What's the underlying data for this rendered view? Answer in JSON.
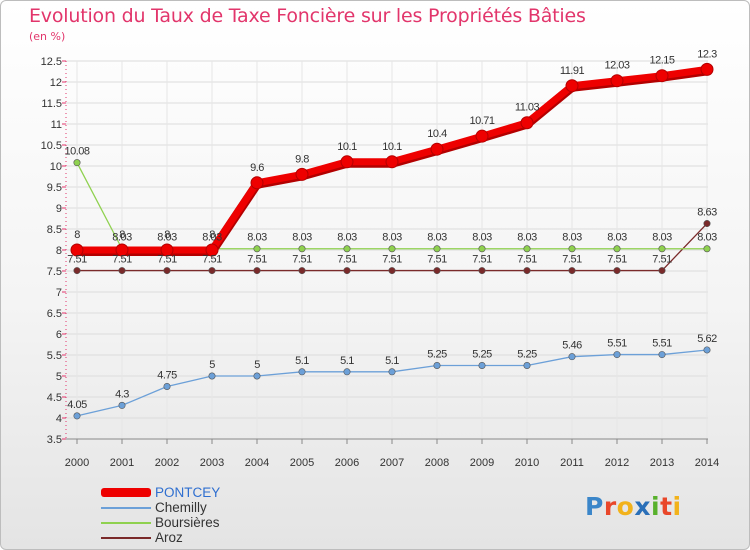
{
  "title": "Evolution du Taux de Taxe Foncière sur les Propriétés Bâties",
  "unit_label": "(en %)",
  "logo": {
    "text": "Proxiti",
    "letter_colors": [
      "#3b86c9",
      "#e9472a",
      "#f2b21b",
      "#2a6fb8",
      "#58b12c",
      "#e9472a",
      "#f2b21b"
    ]
  },
  "chart_data": {
    "type": "line",
    "title": "Evolution du Taux de Taxe Foncière sur les Propriétés Bâties",
    "ylabel": "(en %)",
    "xlabel": "",
    "x": [
      "2000",
      "2001",
      "2002",
      "2003",
      "2004",
      "2005",
      "2006",
      "2007",
      "2008",
      "2009",
      "2010",
      "2011",
      "2012",
      "2013",
      "2014"
    ],
    "ylim": [
      3.5,
      12.5
    ],
    "yticks": [
      "3.5",
      "4",
      "4.5",
      "5",
      "5.5",
      "6",
      "6.5",
      "7",
      "7.5",
      "8",
      "8.5",
      "9",
      "9.5",
      "10",
      "10.5",
      "11",
      "11.5",
      "12",
      "12.5"
    ],
    "grid": true,
    "legend_position": "bottom-left",
    "series": [
      {
        "name": "Aroz",
        "color": "#7a2a2a",
        "values": [
          7.51,
          7.51,
          7.51,
          7.51,
          7.51,
          7.51,
          7.51,
          7.51,
          7.51,
          7.51,
          7.51,
          7.51,
          7.51,
          7.51,
          8.63
        ],
        "labels": [
          "7.51",
          "7.51",
          "7.51",
          "7.51",
          "7.51",
          "7.51",
          "7.51",
          "7.51",
          "7.51",
          "7.51",
          "7.51",
          "7.51",
          "7.51",
          "7.51",
          "8.63"
        ]
      },
      {
        "name": "Chemilly",
        "color": "#6ca0d8",
        "values": [
          4.05,
          4.3,
          4.75,
          5,
          5,
          5.1,
          5.1,
          5.1,
          5.25,
          5.25,
          5.25,
          5.46,
          5.51,
          5.51,
          5.62
        ],
        "labels": [
          "4.05",
          "4.3",
          "4.75",
          "5",
          "5",
          "5.1",
          "5.1",
          "5.1",
          "5.25",
          "5.25",
          "5.25",
          "5.46",
          "5.51",
          "5.51",
          "5.62"
        ]
      },
      {
        "name": "Boursières",
        "color": "#8fd14f",
        "values": [
          10.08,
          8.03,
          8.03,
          8.03,
          8.03,
          8.03,
          8.03,
          8.03,
          8.03,
          8.03,
          8.03,
          8.03,
          8.03,
          8.03,
          8.03
        ],
        "labels": [
          "10.08",
          "8.03",
          "8.03",
          "8.03",
          "8.03",
          "8.03",
          "8.03",
          "8.03",
          "8.03",
          "8.03",
          "8.03",
          "8.03",
          "8.03",
          "8.03",
          "8.03"
        ]
      },
      {
        "name": "PONTCEY",
        "color": "#ee0000",
        "values": [
          8,
          8,
          8,
          8,
          9.6,
          9.8,
          10.1,
          10.1,
          10.4,
          10.71,
          11.03,
          11.91,
          12.03,
          12.15,
          12.3
        ],
        "labels": [
          "8",
          "8",
          "8",
          "8",
          "9.6",
          "9.8",
          "10.1",
          "10.1",
          "10.4",
          "10.71",
          "11.03",
          "11.91",
          "12.03",
          "12.15",
          "12.3"
        ]
      }
    ],
    "legend": [
      "PONTCEY",
      "Chemilly",
      "Boursières",
      "Aroz"
    ]
  }
}
